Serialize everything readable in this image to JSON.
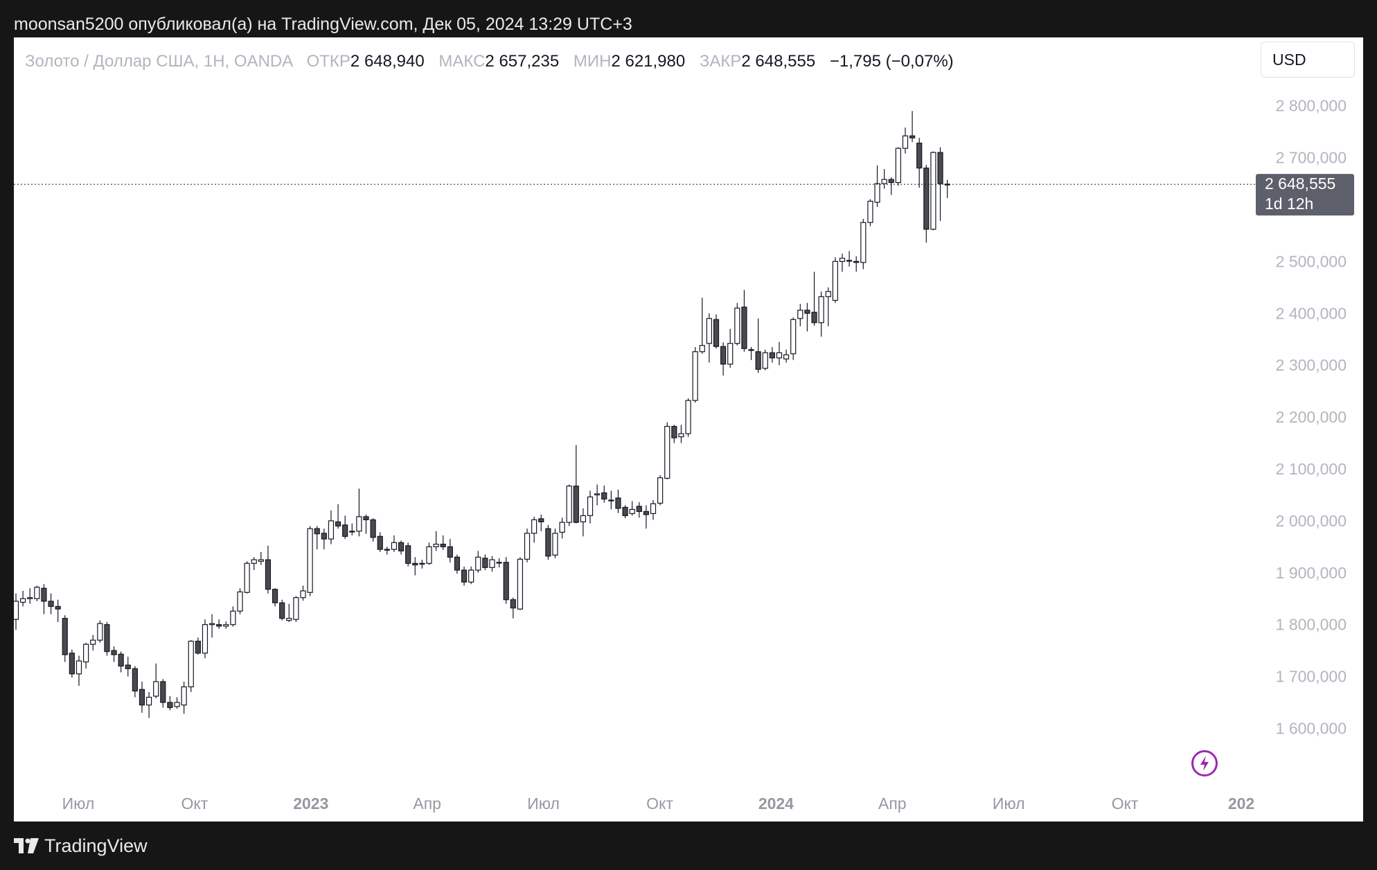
{
  "header": {
    "publish_line": "moonsan5200 опубликовал(а) на TradingView.com, Дек 05, 2024 13:29 UTC+3"
  },
  "legend": {
    "symbol": "Золото / Доллар США, 1Н, OANDA",
    "open_label": "ОТКР",
    "open_value": "2 648,940",
    "high_label": "МАКС",
    "high_value": "2 657,235",
    "low_label": "МИН",
    "low_value": "2 621,980",
    "close_label": "ЗАКР",
    "close_value": "2 648,555",
    "change": "−1,795 (−0,07%)"
  },
  "currency_button": "USD",
  "price_tag": {
    "price": "2 648,555",
    "countdown": "1d 12h"
  },
  "footer": {
    "brand": "TradingView"
  },
  "icons": {
    "brand_logo": "tradingview-logo-icon",
    "bolt": "lightning-bolt-icon"
  },
  "colors": {
    "bull_body": "#ffffff",
    "bear_body": "#4a4a4e",
    "wick": "#131722",
    "price_tag_bg": "#5d606b",
    "accent_purple": "#9c27b0"
  },
  "chart_data": {
    "type": "candlestick",
    "ylim": [
      1500,
      2880
    ],
    "y_ticks": [
      {
        "value": 1600,
        "label": "1 600,000"
      },
      {
        "value": 1700,
        "label": "1 700,000"
      },
      {
        "value": 1800,
        "label": "1 800,000"
      },
      {
        "value": 1900,
        "label": "1 900,000"
      },
      {
        "value": 2000,
        "label": "2 000,000"
      },
      {
        "value": 2100,
        "label": "2 100,000"
      },
      {
        "value": 2200,
        "label": "2 200,000"
      },
      {
        "value": 2300,
        "label": "2 300,000"
      },
      {
        "value": 2400,
        "label": "2 400,000"
      },
      {
        "value": 2500,
        "label": "2 500,000"
      },
      {
        "value": 2700,
        "label": "2 700,000"
      },
      {
        "value": 2800,
        "label": "2 800,000"
      }
    ],
    "x_ticks": [
      {
        "label": "Июл",
        "bold": false
      },
      {
        "label": "Окт",
        "bold": false
      },
      {
        "label": "2023",
        "bold": true
      },
      {
        "label": "Апр",
        "bold": false
      },
      {
        "label": "Июл",
        "bold": false
      },
      {
        "label": "Окт",
        "bold": false
      },
      {
        "label": "2024",
        "bold": true
      },
      {
        "label": "Апр",
        "bold": false
      },
      {
        "label": "Июл",
        "bold": false
      },
      {
        "label": "Окт",
        "bold": false
      },
      {
        "label": "202",
        "bold": true
      }
    ],
    "last_price": 2648.555,
    "candles": [
      [
        1810,
        1845,
        1860,
        1790
      ],
      [
        1843,
        1850,
        1865,
        1835
      ],
      [
        1850,
        1852,
        1870,
        1840
      ],
      [
        1850,
        1872,
        1875,
        1845
      ],
      [
        1870,
        1845,
        1878,
        1820
      ],
      [
        1845,
        1835,
        1860,
        1820
      ],
      [
        1835,
        1830,
        1848,
        1805
      ],
      [
        1812,
        1742,
        1818,
        1728
      ],
      [
        1745,
        1705,
        1752,
        1698
      ],
      [
        1705,
        1730,
        1740,
        1682
      ],
      [
        1728,
        1762,
        1765,
        1715
      ],
      [
        1762,
        1770,
        1780,
        1750
      ],
      [
        1770,
        1802,
        1808,
        1765
      ],
      [
        1800,
        1748,
        1805,
        1740
      ],
      [
        1750,
        1742,
        1758,
        1728
      ],
      [
        1743,
        1720,
        1748,
        1708
      ],
      [
        1722,
        1715,
        1738,
        1700
      ],
      [
        1715,
        1672,
        1720,
        1660
      ],
      [
        1675,
        1645,
        1690,
        1630
      ],
      [
        1645,
        1660,
        1670,
        1620
      ],
      [
        1662,
        1690,
        1725,
        1658
      ],
      [
        1690,
        1650,
        1695,
        1640
      ],
      [
        1650,
        1640,
        1662,
        1635
      ],
      [
        1642,
        1650,
        1660,
        1638
      ],
      [
        1645,
        1680,
        1690,
        1628
      ],
      [
        1680,
        1768,
        1770,
        1670
      ],
      [
        1768,
        1745,
        1775,
        1742
      ],
      [
        1745,
        1800,
        1810,
        1735
      ],
      [
        1800,
        1802,
        1820,
        1775
      ],
      [
        1800,
        1797,
        1810,
        1792
      ],
      [
        1797,
        1800,
        1806,
        1792
      ],
      [
        1800,
        1826,
        1835,
        1796
      ],
      [
        1826,
        1863,
        1870,
        1820
      ],
      [
        1862,
        1918,
        1922,
        1860
      ],
      [
        1918,
        1925,
        1930,
        1905
      ],
      [
        1922,
        1925,
        1940,
        1915
      ],
      [
        1925,
        1868,
        1952,
        1860
      ],
      [
        1868,
        1842,
        1870,
        1835
      ],
      [
        1842,
        1812,
        1848,
        1808
      ],
      [
        1808,
        1812,
        1840,
        1805
      ],
      [
        1810,
        1852,
        1855,
        1805
      ],
      [
        1852,
        1865,
        1875,
        1846
      ],
      [
        1862,
        1985,
        1990,
        1855
      ],
      [
        1985,
        1975,
        1990,
        1945
      ],
      [
        1976,
        1965,
        1985,
        1945
      ],
      [
        1965,
        2000,
        2020,
        1955
      ],
      [
        1998,
        1990,
        2032,
        1985
      ],
      [
        1992,
        1970,
        2010,
        1965
      ],
      [
        1980,
        1980,
        1995,
        1972
      ],
      [
        1980,
        2008,
        2062,
        1970
      ],
      [
        2008,
        2002,
        2012,
        1975
      ],
      [
        2002,
        1968,
        2005,
        1960
      ],
      [
        1970,
        1945,
        1978,
        1940
      ],
      [
        1945,
        1945,
        1950,
        1935
      ],
      [
        1945,
        1958,
        1972,
        1940
      ],
      [
        1958,
        1942,
        1962,
        1935
      ],
      [
        1952,
        1918,
        1958,
        1912
      ],
      [
        1918,
        1915,
        1930,
        1895
      ],
      [
        1918,
        1918,
        1925,
        1908
      ],
      [
        1918,
        1950,
        1958,
        1915
      ],
      [
        1950,
        1955,
        1980,
        1942
      ],
      [
        1955,
        1950,
        1972,
        1944
      ],
      [
        1950,
        1930,
        1965,
        1920
      ],
      [
        1930,
        1905,
        1935,
        1898
      ],
      [
        1905,
        1882,
        1912,
        1875
      ],
      [
        1882,
        1905,
        1912,
        1878
      ],
      [
        1905,
        1930,
        1942,
        1900
      ],
      [
        1928,
        1910,
        1935,
        1905
      ],
      [
        1910,
        1925,
        1932,
        1902
      ],
      [
        1920,
        1920,
        1928,
        1910
      ],
      [
        1920,
        1848,
        1930,
        1840
      ],
      [
        1848,
        1832,
        1852,
        1812
      ],
      [
        1830,
        1926,
        1930,
        1828
      ],
      [
        1926,
        1976,
        1985,
        1920
      ],
      [
        1976,
        2002,
        2008,
        1958
      ],
      [
        2004,
        1998,
        2012,
        1980
      ],
      [
        1985,
        1932,
        1992,
        1925
      ],
      [
        1934,
        1976,
        1985,
        1928
      ],
      [
        1978,
        1997,
        2006,
        1966
      ],
      [
        1997,
        2067,
        2070,
        1990
      ],
      [
        2067,
        1997,
        2146,
        1995
      ],
      [
        1998,
        2010,
        2024,
        1970
      ],
      [
        2010,
        2046,
        2058,
        1995
      ],
      [
        2050,
        2052,
        2070,
        2030
      ],
      [
        2054,
        2042,
        2068,
        2035
      ],
      [
        2040,
        2040,
        2058,
        2022
      ],
      [
        2044,
        2024,
        2060,
        2015
      ],
      [
        2026,
        2010,
        2030,
        2005
      ],
      [
        2014,
        2022,
        2038,
        2010
      ],
      [
        2028,
        2018,
        2036,
        2006
      ],
      [
        2018,
        2012,
        2030,
        1985
      ],
      [
        2014,
        2033,
        2040,
        2002
      ],
      [
        2034,
        2083,
        2088,
        2030
      ],
      [
        2082,
        2182,
        2190,
        2080
      ],
      [
        2182,
        2160,
        2185,
        2150
      ],
      [
        2162,
        2168,
        2185,
        2150
      ],
      [
        2168,
        2232,
        2236,
        2162
      ],
      [
        2232,
        2326,
        2335,
        2228
      ],
      [
        2326,
        2338,
        2430,
        2322
      ],
      [
        2342,
        2390,
        2400,
        2305
      ],
      [
        2388,
        2336,
        2398,
        2332
      ],
      [
        2336,
        2302,
        2344,
        2280
      ],
      [
        2302,
        2342,
        2370,
        2295
      ],
      [
        2342,
        2410,
        2420,
        2338
      ],
      [
        2412,
        2332,
        2445,
        2326
      ],
      [
        2330,
        2330,
        2335,
        2310
      ],
      [
        2326,
        2292,
        2390,
        2285
      ],
      [
        2294,
        2324,
        2330,
        2290
      ],
      [
        2324,
        2314,
        2335,
        2305
      ],
      [
        2314,
        2324,
        2345,
        2300
      ],
      [
        2312,
        2320,
        2330,
        2305
      ],
      [
        2322,
        2388,
        2392,
        2310
      ],
      [
        2390,
        2406,
        2418,
        2375
      ],
      [
        2406,
        2400,
        2420,
        2365
      ],
      [
        2402,
        2382,
        2480,
        2376
      ],
      [
        2382,
        2432,
        2442,
        2355
      ],
      [
        2432,
        2442,
        2450,
        2375
      ],
      [
        2425,
        2500,
        2508,
        2420
      ],
      [
        2500,
        2506,
        2515,
        2480
      ],
      [
        2502,
        2502,
        2520,
        2490
      ],
      [
        2500,
        2498,
        2510,
        2480
      ],
      [
        2498,
        2575,
        2582,
        2485
      ],
      [
        2575,
        2616,
        2620,
        2568
      ],
      [
        2614,
        2650,
        2685,
        2605
      ],
      [
        2650,
        2658,
        2678,
        2640
      ],
      [
        2658,
        2652,
        2662,
        2628
      ],
      [
        2652,
        2718,
        2720,
        2646
      ],
      [
        2718,
        2742,
        2758,
        2708
      ],
      [
        2742,
        2738,
        2790,
        2730
      ],
      [
        2728,
        2680,
        2738,
        2642
      ],
      [
        2680,
        2562,
        2686,
        2536
      ],
      [
        2562,
        2710,
        2712,
        2560
      ],
      [
        2710,
        2650,
        2720,
        2578
      ],
      [
        2648,
        2649,
        2657,
        2622
      ]
    ]
  }
}
